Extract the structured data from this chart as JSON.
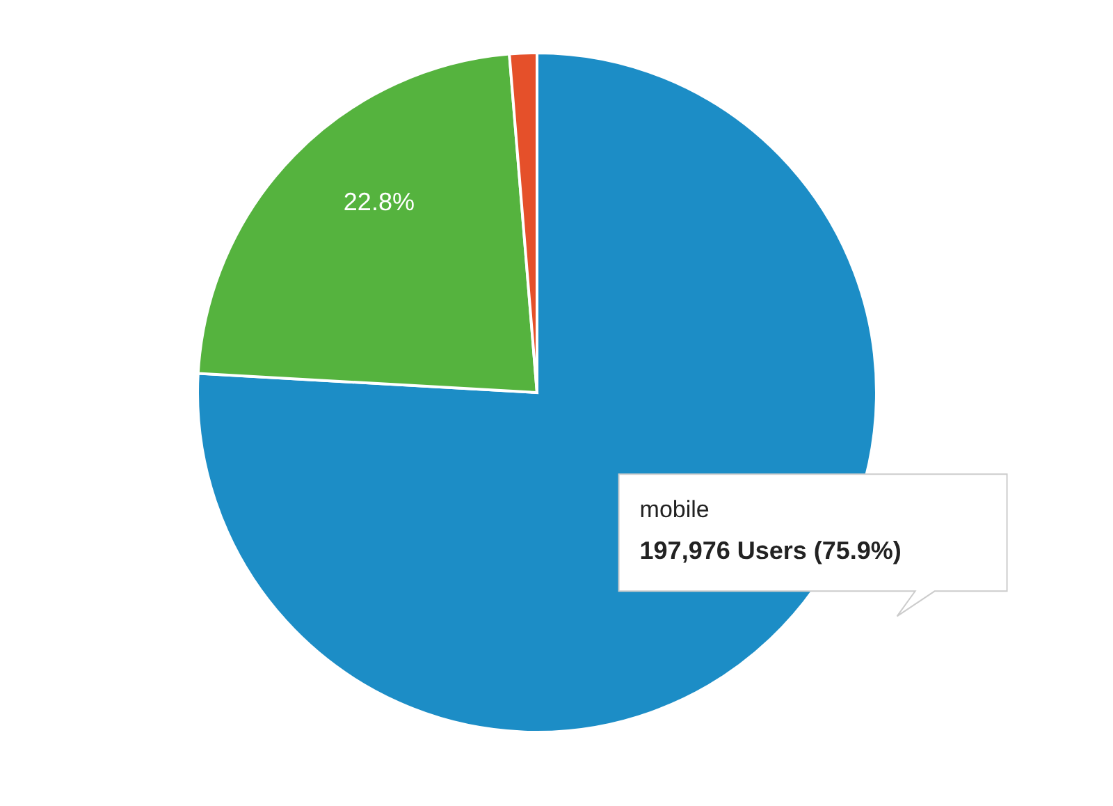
{
  "chart_data": {
    "type": "pie",
    "categories": [
      "mobile",
      null,
      null
    ],
    "values": [
      75.9,
      22.8,
      1.3
    ],
    "colors": [
      "#1c8dc6",
      "#55b33e",
      "#e5502a"
    ],
    "value_labels": [
      "197,976 Users (75.9%)",
      "22.8%",
      null
    ]
  }
}
